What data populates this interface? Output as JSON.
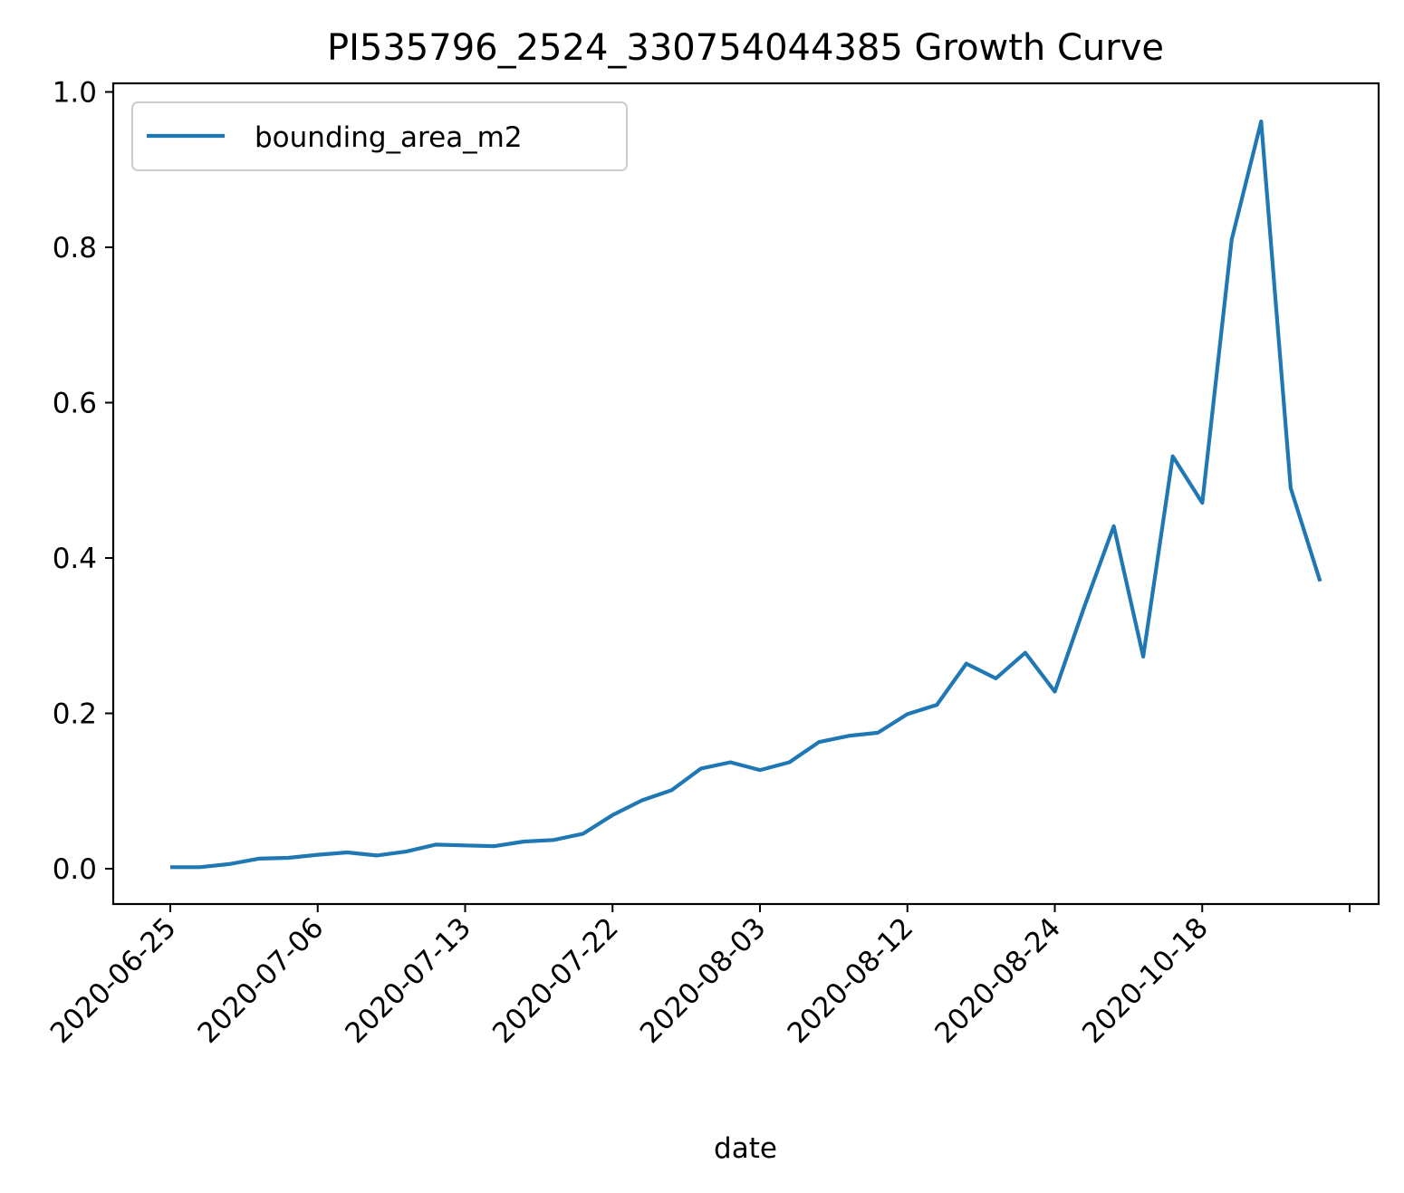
{
  "chart_data": {
    "type": "line",
    "title": "PI535796_2524_330754044385 Growth Curve",
    "xlabel": "date",
    "ylabel": "",
    "ylim": [
      -0.045,
      1.01
    ],
    "yticks": [
      "0.0",
      "0.2",
      "0.4",
      "0.6",
      "0.8",
      "1.0"
    ],
    "x_tick_labels": [
      "2020-06-25",
      "2020-07-06",
      "2020-07-13",
      "2020-07-22",
      "2020-08-03",
      "2020-08-12",
      "2020-08-24",
      "2020-10-18"
    ],
    "x_tick_every": 5,
    "grid": false,
    "legend_position": "upper left",
    "series": [
      {
        "name": "bounding_area_m2",
        "color": "#1f77b4",
        "values": [
          0.002,
          0.002,
          0.006,
          0.013,
          0.014,
          0.018,
          0.021,
          0.017,
          0.022,
          0.031,
          0.03,
          0.029,
          0.035,
          0.037,
          0.045,
          0.069,
          0.088,
          0.101,
          0.129,
          0.137,
          0.127,
          0.137,
          0.163,
          0.171,
          0.175,
          0.199,
          0.211,
          0.264,
          0.245,
          0.278,
          0.228,
          0.337,
          0.441,
          0.273,
          0.531,
          0.471,
          0.81,
          0.962,
          0.49,
          0.37
        ]
      }
    ]
  }
}
